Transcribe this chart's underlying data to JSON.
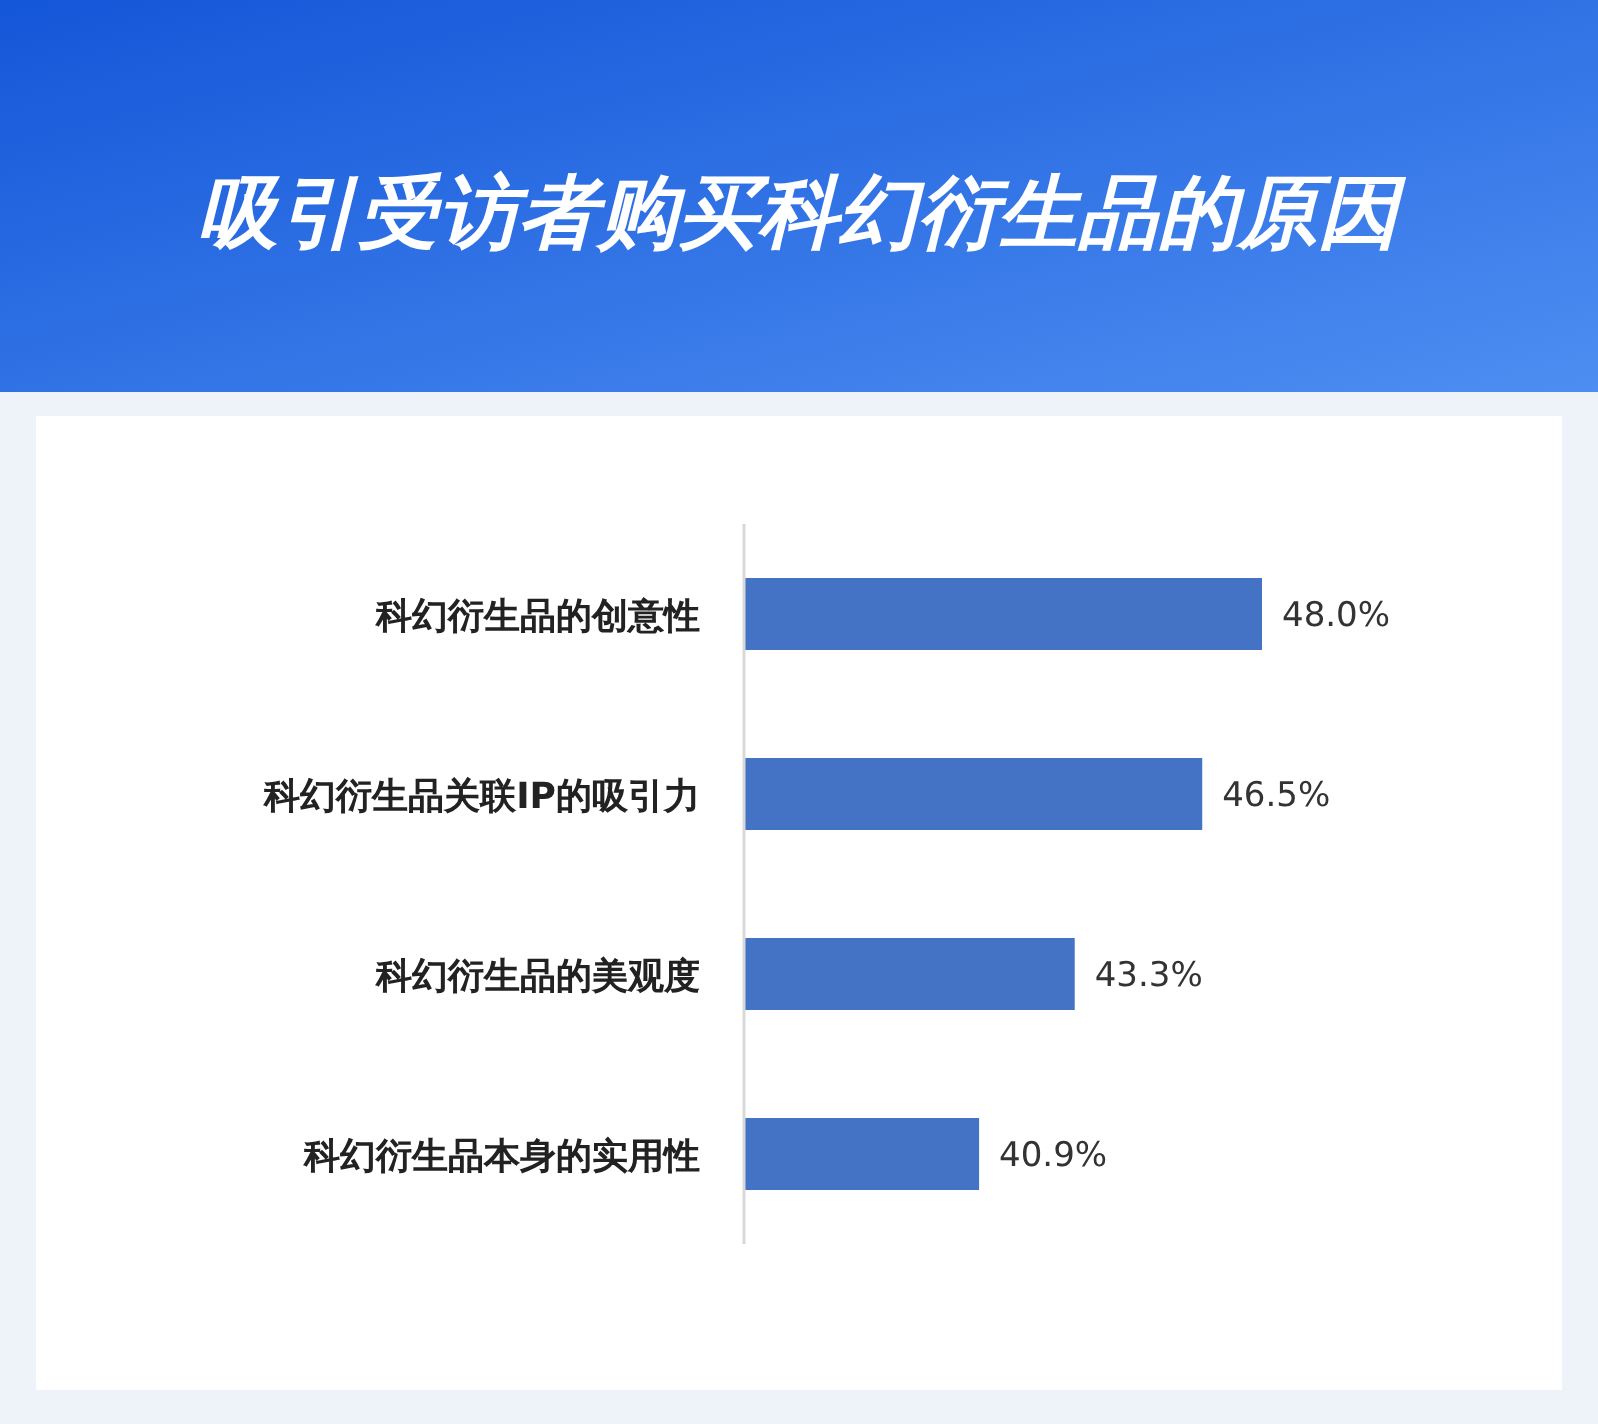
{
  "chart_data": {
    "type": "bar",
    "orientation": "horizontal",
    "title": "吸引受访者购买科幻衍生品的原因",
    "categories": [
      "科幻衍生品的创意性",
      "科幻衍生品关联IP的吸引力",
      "科幻衍生品的美观度",
      "科幻衍生品本身的实用性"
    ],
    "values": [
      48.0,
      46.5,
      43.3,
      40.9
    ],
    "value_labels": [
      "48.0%",
      "46.5%",
      "43.3%",
      "40.9%"
    ],
    "color": "#4472c4",
    "xlim": [
      35,
      48
    ],
    "tick_labels": "y"
  }
}
